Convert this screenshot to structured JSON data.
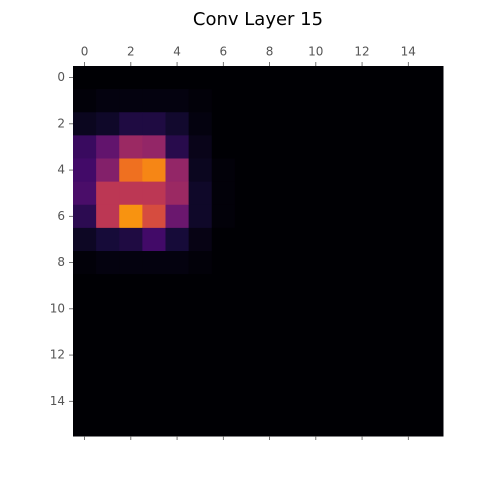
{
  "chart_data": {
    "type": "heatmap",
    "title": "Conv Layer 15",
    "colormap": "inferno",
    "clim": [
      0,
      1
    ],
    "xlim": [
      -0.5,
      15.5
    ],
    "ylim": [
      15.5,
      -0.5
    ],
    "xticks": [
      0,
      2,
      4,
      6,
      8,
      10,
      12,
      14
    ],
    "yticks": [
      0,
      2,
      4,
      6,
      8,
      10,
      12,
      14
    ],
    "z": [
      [
        0,
        0,
        0,
        0,
        0,
        0,
        0,
        0,
        0,
        0,
        0,
        0,
        0,
        0,
        0,
        0
      ],
      [
        0.01,
        0.02,
        0.02,
        0.02,
        0.02,
        0.01,
        0,
        0,
        0,
        0,
        0,
        0,
        0,
        0,
        0,
        0
      ],
      [
        0.05,
        0.07,
        0.12,
        0.12,
        0.08,
        0.02,
        0,
        0,
        0,
        0,
        0,
        0,
        0,
        0,
        0,
        0
      ],
      [
        0.18,
        0.28,
        0.42,
        0.4,
        0.14,
        0.04,
        0,
        0,
        0,
        0,
        0,
        0,
        0,
        0,
        0,
        0
      ],
      [
        0.2,
        0.36,
        0.68,
        0.73,
        0.4,
        0.05,
        0.01,
        0,
        0,
        0,
        0,
        0,
        0,
        0,
        0,
        0
      ],
      [
        0.22,
        0.5,
        0.5,
        0.5,
        0.42,
        0.07,
        0.01,
        0,
        0,
        0,
        0,
        0,
        0,
        0,
        0,
        0
      ],
      [
        0.15,
        0.5,
        0.76,
        0.58,
        0.3,
        0.07,
        0.01,
        0,
        0,
        0,
        0,
        0,
        0,
        0,
        0,
        0
      ],
      [
        0.06,
        0.1,
        0.12,
        0.2,
        0.1,
        0.03,
        0,
        0,
        0,
        0,
        0,
        0,
        0,
        0,
        0,
        0
      ],
      [
        0.01,
        0.02,
        0.02,
        0.02,
        0.02,
        0.01,
        0,
        0,
        0,
        0,
        0,
        0,
        0,
        0,
        0,
        0
      ],
      [
        0,
        0,
        0,
        0,
        0,
        0,
        0,
        0,
        0,
        0,
        0,
        0,
        0,
        0,
        0,
        0
      ],
      [
        0,
        0,
        0,
        0,
        0,
        0,
        0,
        0,
        0,
        0,
        0,
        0,
        0,
        0,
        0,
        0
      ],
      [
        0,
        0,
        0,
        0,
        0,
        0,
        0,
        0,
        0,
        0,
        0,
        0,
        0,
        0,
        0,
        0
      ],
      [
        0,
        0,
        0,
        0,
        0,
        0,
        0,
        0,
        0,
        0,
        0,
        0,
        0,
        0,
        0,
        0
      ],
      [
        0,
        0,
        0,
        0,
        0,
        0,
        0,
        0,
        0,
        0,
        0,
        0,
        0,
        0,
        0,
        0
      ],
      [
        0,
        0,
        0,
        0,
        0,
        0,
        0,
        0,
        0,
        0,
        0,
        0,
        0,
        0,
        0,
        0
      ],
      [
        0,
        0,
        0,
        0,
        0,
        0,
        0,
        0,
        0,
        0,
        0,
        0,
        0,
        0,
        0,
        0
      ]
    ]
  }
}
